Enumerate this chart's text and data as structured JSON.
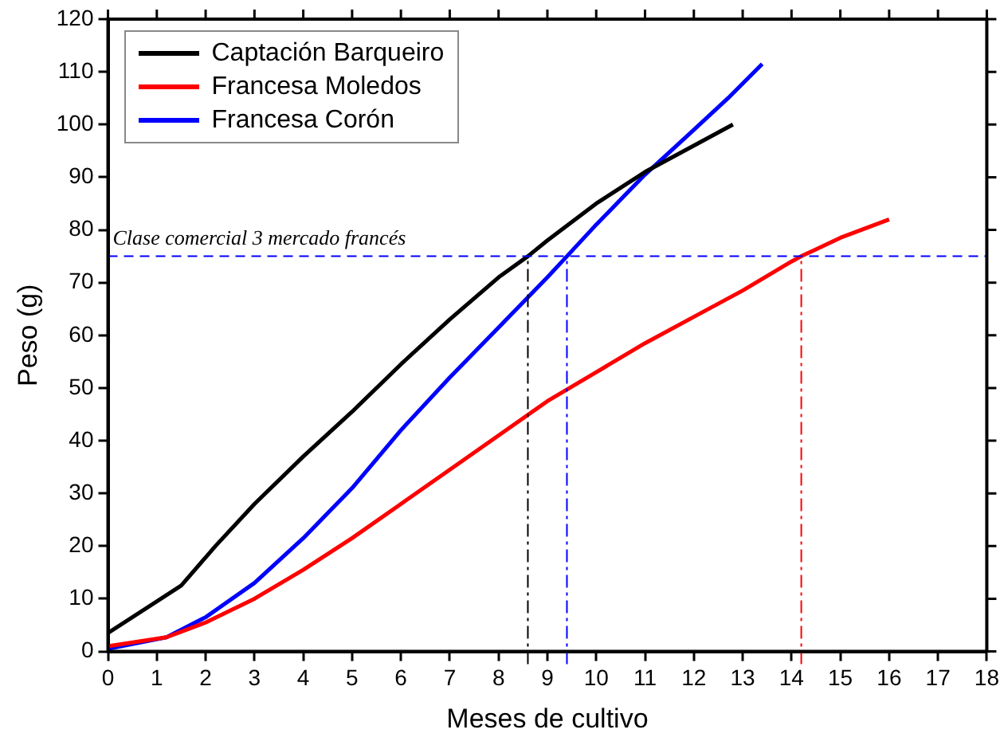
{
  "chart_data": {
    "type": "line",
    "xlabel": "Meses de cultivo",
    "ylabel": "Peso (g)",
    "xlim": [
      0,
      18
    ],
    "xticks": [
      0,
      1,
      2,
      3,
      4,
      5,
      6,
      7,
      8,
      9,
      10,
      11,
      12,
      13,
      14,
      15,
      16,
      17,
      18
    ],
    "ylim": [
      0,
      120
    ],
    "yticks": [
      0,
      10,
      20,
      30,
      40,
      50,
      60,
      70,
      80,
      90,
      100,
      110,
      120
    ],
    "grid": false,
    "legend": "top left",
    "marker": "none",
    "line_style": "solid",
    "series": [
      {
        "name": "Captación Barqueiro",
        "color": "#000000",
        "x": [
          0,
          1.5,
          2.2,
          3,
          4,
          5,
          6,
          7,
          8,
          8.6,
          9,
          10,
          11,
          12,
          12.8
        ],
        "values": [
          3.5,
          12.5,
          20,
          28,
          37,
          45.5,
          54.5,
          63,
          71,
          75,
          78,
          85,
          91,
          96,
          100
        ]
      },
      {
        "name": "Francesa Moledos",
        "color": "#ff0000",
        "x": [
          0,
          1.2,
          2,
          3,
          4,
          5,
          6,
          7,
          8,
          9,
          10,
          11,
          12,
          13,
          14,
          14.2,
          15,
          16
        ],
        "values": [
          1,
          2.7,
          5.5,
          10,
          15.5,
          21.5,
          28,
          34.5,
          41,
          47.5,
          53,
          58.5,
          63.5,
          68.5,
          74,
          75,
          78.5,
          82
        ]
      },
      {
        "name": "Francesa Corón",
        "color": "#0000ff",
        "x": [
          0,
          1.2,
          2,
          3,
          4,
          5,
          6,
          7,
          8,
          9,
          9.4,
          10,
          11,
          12,
          12.7,
          13.4
        ],
        "values": [
          0.5,
          2.7,
          6.5,
          13,
          21.5,
          31,
          42,
          52,
          61.5,
          71,
          75,
          81,
          90.5,
          99,
          105,
          111.5
        ]
      }
    ],
    "ref_lines": [
      {
        "axis": "y",
        "value": 75,
        "label": "Clase comercial 3 mercado francés",
        "color": "#0000ff",
        "line_style": "dashed"
      },
      {
        "axis": "x",
        "value": 8.6,
        "color": "#000000",
        "line_style": "dashdot"
      },
      {
        "axis": "x",
        "value": 9.4,
        "color": "#0000ff",
        "line_style": "dashdot"
      },
      {
        "axis": "x",
        "value": 14.2,
        "color": "#ff0000",
        "line_style": "dashdot"
      }
    ]
  }
}
